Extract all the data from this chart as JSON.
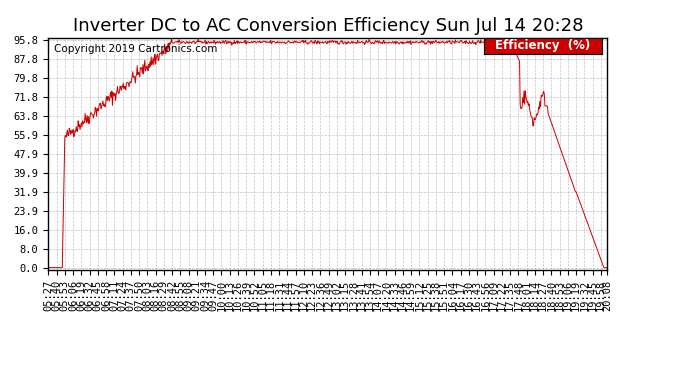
{
  "title": "Inverter DC to AC Conversion Efficiency Sun Jul 14 20:28",
  "copyright": "Copyright 2019 Cartronics.com",
  "legend_label": "Efficiency  (%)",
  "legend_bg": "#cc0000",
  "legend_text_color": "#ffffff",
  "line_color": "#cc0000",
  "bg_color": "#ffffff",
  "plot_bg_color": "#ffffff",
  "grid_color": "#aaaaaa",
  "yticks": [
    0.0,
    8.0,
    16.0,
    23.9,
    31.9,
    39.9,
    47.9,
    55.9,
    63.8,
    71.8,
    79.8,
    87.8,
    95.8
  ],
  "ylim": [
    -1,
    97
  ],
  "title_fontsize": 13,
  "tick_fontsize": 7.5,
  "copyright_fontsize": 7.5
}
